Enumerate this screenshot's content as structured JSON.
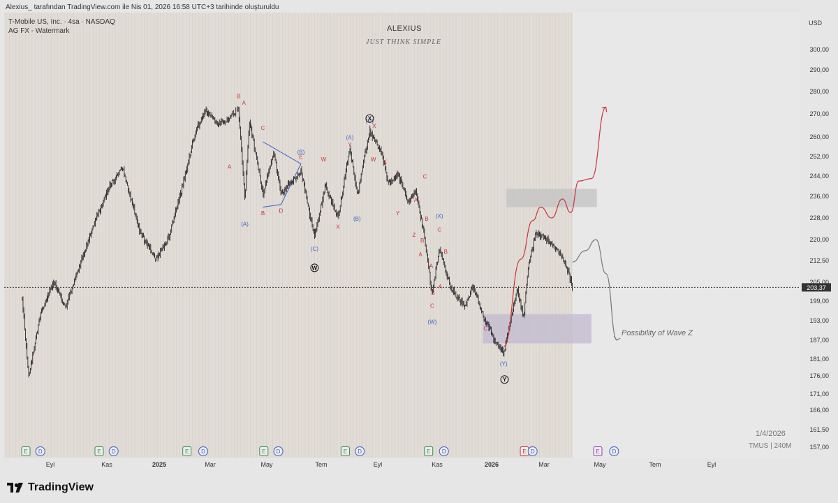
{
  "header": {
    "author_line": "Alexius_ tarafından TradingView.com ile Nis 01, 2026 16:58 UTC+3 tarihinde oluşturuldu",
    "symbol_line": "T-Mobile US, Inc. · 4sa · NASDAQ",
    "indicator_line": "AG FX - Watermark"
  },
  "watermark": {
    "title": "ALEXIUS",
    "subtitle": "JUST THINK SIMPLE"
  },
  "axis": {
    "currency": "USD",
    "current_price_label": "203,37"
  },
  "footer": {
    "date_label": "1/4/2026",
    "symbol_volume": "TMUS | 240M",
    "brand": "TradingView"
  },
  "annotation": {
    "text": "Possibility of Wave Z"
  },
  "colors": {
    "red": "#c8343a",
    "blue": "#3b5fc4",
    "candle": "#111111",
    "zone_light": "#c4c4c4",
    "zone_purple": "#c3bccf"
  },
  "chart_data": {
    "type": "candlestick",
    "title": "",
    "y_ticks": [
      300.0,
      290.0,
      280.0,
      270.0,
      260.0,
      252.0,
      244.0,
      236.0,
      228.0,
      220.0,
      212.5,
      205.0,
      199.0,
      193.0,
      187.0,
      181.0,
      176.0,
      171.0,
      166.0,
      161.5,
      157.0
    ],
    "y_tick_labels": [
      "300,00",
      "290,00",
      "280,00",
      "270,00",
      "260,00",
      "252,00",
      "244,00",
      "236,00",
      "228,00",
      "220,00",
      "212,50",
      "205,00",
      "199,00",
      "193,00",
      "187,00",
      "181,00",
      "176,00",
      "171,00",
      "166,00",
      "161,50",
      "157,00"
    ],
    "x_tick_labels": [
      "Eyl",
      "Kas",
      "2025",
      "Mar",
      "May",
      "Tem",
      "Eyl",
      "Kas",
      "2026",
      "Mar",
      "May",
      "Tem",
      "Eyl"
    ],
    "bold_x_labels": [
      "2025",
      "2026"
    ],
    "current_price": 203.37,
    "price_path": [
      {
        "date": "2024-08-01",
        "price": 200
      },
      {
        "date": "2024-08-08",
        "price": 176
      },
      {
        "date": "2024-08-22",
        "price": 196
      },
      {
        "date": "2024-09-05",
        "price": 205
      },
      {
        "date": "2024-09-18",
        "price": 197
      },
      {
        "date": "2024-10-01",
        "price": 209
      },
      {
        "date": "2024-10-22",
        "price": 228
      },
      {
        "date": "2024-11-05",
        "price": 240
      },
      {
        "date": "2024-11-20",
        "price": 247
      },
      {
        "date": "2024-12-10",
        "price": 222
      },
      {
        "date": "2024-12-27",
        "price": 213
      },
      {
        "date": "2025-01-10",
        "price": 221
      },
      {
        "date": "2025-01-25",
        "price": 240
      },
      {
        "date": "2025-02-08",
        "price": 262
      },
      {
        "date": "2025-02-20",
        "price": 272
      },
      {
        "date": "2025-03-03",
        "price": 266
      },
      {
        "date": "2025-03-12",
        "price": 266
      },
      {
        "date": "2025-03-28",
        "price": 272
      },
      {
        "date": "2025-04-04",
        "price": 235
      },
      {
        "date": "2025-04-09",
        "price": 267
      },
      {
        "date": "2025-04-24",
        "price": 237
      },
      {
        "date": "2025-05-06",
        "price": 254
      },
      {
        "date": "2025-05-14",
        "price": 237
      },
      {
        "date": "2025-06-05",
        "price": 246
      },
      {
        "date": "2025-06-20",
        "price": 221
      },
      {
        "date": "2025-07-02",
        "price": 240
      },
      {
        "date": "2025-07-16",
        "price": 228
      },
      {
        "date": "2025-07-29",
        "price": 256
      },
      {
        "date": "2025-08-06",
        "price": 236
      },
      {
        "date": "2025-08-20",
        "price": 263
      },
      {
        "date": "2025-09-01",
        "price": 254
      },
      {
        "date": "2025-09-10",
        "price": 241
      },
      {
        "date": "2025-09-20",
        "price": 245
      },
      {
        "date": "2025-10-01",
        "price": 234
      },
      {
        "date": "2025-10-10",
        "price": 238
      },
      {
        "date": "2025-10-20",
        "price": 220
      },
      {
        "date": "2025-10-28",
        "price": 201
      },
      {
        "date": "2025-11-05",
        "price": 217
      },
      {
        "date": "2025-11-18",
        "price": 203
      },
      {
        "date": "2025-12-03",
        "price": 197
      },
      {
        "date": "2025-12-12",
        "price": 204
      },
      {
        "date": "2025-12-23",
        "price": 195
      },
      {
        "date": "2026-01-06",
        "price": 186
      },
      {
        "date": "2026-01-15",
        "price": 183
      },
      {
        "date": "2026-01-30",
        "price": 203
      },
      {
        "date": "2026-02-06",
        "price": 194
      },
      {
        "date": "2026-02-11",
        "price": 210
      },
      {
        "date": "2026-02-19",
        "price": 222
      },
      {
        "date": "2026-03-05",
        "price": 220
      },
      {
        "date": "2026-03-16",
        "price": 216
      },
      {
        "date": "2026-03-25",
        "price": 211
      },
      {
        "date": "2026-04-01",
        "price": 203.37
      }
    ],
    "wave_labels": [
      {
        "text": "B",
        "date": "2025-03-28",
        "price": 277,
        "color": "red"
      },
      {
        "text": "A",
        "date": "2025-04-03",
        "price": 274,
        "color": "red"
      },
      {
        "text": "C",
        "date": "2025-04-24",
        "price": 263,
        "color": "red"
      },
      {
        "text": "(B)",
        "date": "2025-06-05",
        "price": 253,
        "color": "blue"
      },
      {
        "text": "E",
        "date": "2025-06-05",
        "price": 251,
        "color": "red"
      },
      {
        "text": "A",
        "date": "2025-03-18",
        "price": 247,
        "color": "red"
      },
      {
        "text": "(A)",
        "date": "2025-04-04",
        "price": 225,
        "color": "blue"
      },
      {
        "text": "B",
        "date": "2025-04-24",
        "price": 229,
        "color": "red"
      },
      {
        "text": "D",
        "date": "2025-05-14",
        "price": 230,
        "color": "red"
      },
      {
        "text": "W",
        "date": "2025-06-30",
        "price": 250,
        "color": "red"
      },
      {
        "text": "(C)",
        "date": "2025-06-20",
        "price": 216,
        "color": "blue"
      },
      {
        "text": "X",
        "date": "2025-07-16",
        "price": 224,
        "color": "red"
      },
      {
        "text": "(A)",
        "date": "2025-07-29",
        "price": 259,
        "color": "blue"
      },
      {
        "text": "Y",
        "date": "2025-07-29",
        "price": 256,
        "color": "red"
      },
      {
        "text": "(B)",
        "date": "2025-08-06",
        "price": 227,
        "color": "blue"
      },
      {
        "text": "(C)",
        "date": "2025-08-20",
        "price": 266,
        "color": "blue"
      },
      {
        "text": "X",
        "date": "2025-08-25",
        "price": 264,
        "color": "red"
      },
      {
        "text": "W",
        "date": "2025-08-24",
        "price": 250,
        "color": "red"
      },
      {
        "text": "X",
        "date": "2025-09-06",
        "price": 249,
        "color": "red"
      },
      {
        "text": "C",
        "date": "2025-10-20",
        "price": 243,
        "color": "red"
      },
      {
        "text": "A",
        "date": "2025-10-10",
        "price": 234,
        "color": "red"
      },
      {
        "text": "Y",
        "date": "2025-09-20",
        "price": 229,
        "color": "red"
      },
      {
        "text": "B",
        "date": "2025-10-22",
        "price": 227,
        "color": "red"
      },
      {
        "text": "(X)",
        "date": "2025-11-05",
        "price": 228,
        "color": "blue"
      },
      {
        "text": "C",
        "date": "2025-11-05",
        "price": 223,
        "color": "red"
      },
      {
        "text": "Z",
        "date": "2025-10-08",
        "price": 221,
        "color": "red"
      },
      {
        "text": "B",
        "date": "2025-10-17",
        "price": 219,
        "color": "red"
      },
      {
        "text": "B",
        "date": "2025-11-12",
        "price": 215,
        "color": "red"
      },
      {
        "text": "A",
        "date": "2025-10-15",
        "price": 214,
        "color": "red"
      },
      {
        "text": "A",
        "date": "2025-10-27",
        "price": 210,
        "color": "red"
      },
      {
        "text": "B",
        "date": "2025-10-29",
        "price": 201,
        "color": "red"
      },
      {
        "text": "A",
        "date": "2025-11-06",
        "price": 203,
        "color": "red"
      },
      {
        "text": "C",
        "date": "2025-10-28",
        "price": 197,
        "color": "red"
      },
      {
        "text": "(W)",
        "date": "2025-10-28",
        "price": 192,
        "color": "blue"
      },
      {
        "text": "C",
        "date": "2025-12-26",
        "price": 190,
        "color": "red"
      },
      {
        "text": "(Y)",
        "date": "2026-01-15",
        "price": 179,
        "color": "blue"
      }
    ],
    "circled_labels": [
      {
        "text": "W",
        "date": "2025-06-20",
        "price": 210
      },
      {
        "text": "X",
        "date": "2025-08-20",
        "price": 268
      },
      {
        "text": "Y",
        "date": "2026-01-16",
        "price": 175
      }
    ],
    "zones": [
      {
        "name": "resistance",
        "from_date": "2026-01-18",
        "to_date": "2026-04-28",
        "top": 239,
        "bottom": 232,
        "color": "zone_light"
      },
      {
        "name": "support",
        "from_date": "2025-12-23",
        "to_date": "2026-04-22",
        "top": 195,
        "bottom": 186,
        "color": "zone_purple"
      }
    ],
    "event_markers": [
      {
        "letter": "E",
        "date": "2024-08-05",
        "color": "green"
      },
      {
        "letter": "D",
        "date": "2024-08-21",
        "color": "blue"
      },
      {
        "letter": "E",
        "date": "2024-10-25",
        "color": "green"
      },
      {
        "letter": "D",
        "date": "2024-11-10",
        "color": "blue"
      },
      {
        "letter": "E",
        "date": "2025-01-30",
        "color": "green"
      },
      {
        "letter": "D",
        "date": "2025-02-17",
        "color": "blue"
      },
      {
        "letter": "E",
        "date": "2025-04-25",
        "color": "green"
      },
      {
        "letter": "D",
        "date": "2025-05-11",
        "color": "blue"
      },
      {
        "letter": "E",
        "date": "2025-07-24",
        "color": "green"
      },
      {
        "letter": "D",
        "date": "2025-08-09",
        "color": "blue"
      },
      {
        "letter": "E",
        "date": "2025-10-24",
        "color": "green"
      },
      {
        "letter": "D",
        "date": "2025-11-10",
        "color": "blue"
      },
      {
        "letter": "E",
        "date": "2026-02-07",
        "color": "red"
      },
      {
        "letter": "D",
        "date": "2026-02-16",
        "color": "blue"
      },
      {
        "letter": "E",
        "date": "2026-04-29",
        "color": "purple"
      },
      {
        "letter": "D",
        "date": "2026-05-17",
        "color": "blue"
      }
    ],
    "projection_up": [
      {
        "date": "2026-01-15",
        "price": 185
      },
      {
        "date": "2026-02-03",
        "price": 213
      },
      {
        "date": "2026-02-16",
        "price": 227
      },
      {
        "date": "2026-02-25",
        "price": 232
      },
      {
        "date": "2026-03-09",
        "price": 228
      },
      {
        "date": "2026-03-21",
        "price": 235
      },
      {
        "date": "2026-03-30",
        "price": 230
      },
      {
        "date": "2026-04-08",
        "price": 242
      },
      {
        "date": "2026-04-22",
        "price": 243
      },
      {
        "date": "2026-05-08",
        "price": 273
      }
    ],
    "projection_wave_z": [
      {
        "date": "2026-04-01",
        "price": 212
      },
      {
        "date": "2026-04-15",
        "price": 216
      },
      {
        "date": "2026-04-27",
        "price": 220
      },
      {
        "date": "2026-05-08",
        "price": 208
      },
      {
        "date": "2026-05-20",
        "price": 187
      }
    ]
  }
}
